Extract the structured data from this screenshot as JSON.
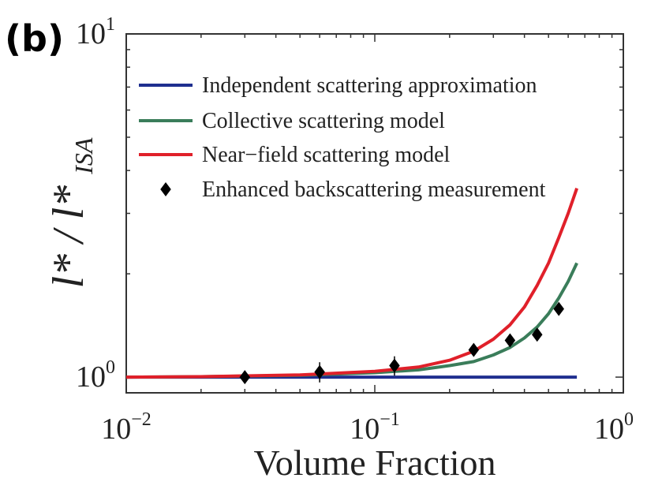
{
  "chart_data": {
    "type": "line",
    "panel_label": "(b)",
    "title": "",
    "xlabel": "Volume Fraction",
    "ylabel": {
      "main": "l* / l*",
      "subscript": "ISA"
    },
    "xscale": "log",
    "yscale": "log",
    "xlim": [
      0.01,
      1
    ],
    "ylim": [
      0.9,
      10
    ],
    "x_ticks": [
      {
        "base": "10",
        "exp": "−2"
      },
      {
        "base": "10",
        "exp": "−1"
      },
      {
        "base": "10",
        "exp": "0"
      }
    ],
    "y_ticks": [
      {
        "base": "10",
        "exp": "0"
      },
      {
        "base": "10",
        "exp": "1"
      }
    ],
    "legend_position": "top",
    "series": [
      {
        "name": "Independent scattering approximation",
        "kind": "line",
        "color": "#1f2f8f",
        "x": [
          0.01,
          0.02,
          0.05,
          0.1,
          0.2,
          0.3,
          0.4,
          0.5,
          0.65
        ],
        "y": [
          1.0,
          1.0,
          1.0,
          1.0,
          1.0,
          1.0,
          1.0,
          1.0,
          1.0
        ]
      },
      {
        "name": "Collective scattering model",
        "kind": "line",
        "color": "#3a7d5a",
        "x": [
          0.01,
          0.02,
          0.05,
          0.1,
          0.15,
          0.2,
          0.25,
          0.3,
          0.35,
          0.4,
          0.45,
          0.5,
          0.55,
          0.6,
          0.65
        ],
        "y": [
          1.0,
          1.003,
          1.012,
          1.03,
          1.05,
          1.08,
          1.11,
          1.16,
          1.22,
          1.3,
          1.4,
          1.53,
          1.7,
          1.9,
          2.15
        ]
      },
      {
        "name": "Near−field scattering model",
        "kind": "line",
        "color": "#e0202a",
        "x": [
          0.01,
          0.02,
          0.05,
          0.1,
          0.15,
          0.2,
          0.25,
          0.3,
          0.35,
          0.4,
          0.45,
          0.5,
          0.55,
          0.6,
          0.65
        ],
        "y": [
          1.0,
          1.003,
          1.015,
          1.04,
          1.07,
          1.12,
          1.19,
          1.29,
          1.42,
          1.6,
          1.85,
          2.15,
          2.55,
          3.0,
          3.55
        ]
      },
      {
        "name": "Enhanced backscattering measurement",
        "kind": "scatter",
        "marker": "diamond",
        "color": "#000000",
        "points": [
          {
            "x": 0.03,
            "y": 1.0,
            "err": 0.0
          },
          {
            "x": 0.06,
            "y": 1.035,
            "err": 0.07
          },
          {
            "x": 0.12,
            "y": 1.08,
            "err": 0.07
          },
          {
            "x": 0.25,
            "y": 1.2,
            "err": 0.045
          },
          {
            "x": 0.35,
            "y": 1.28,
            "err": 0.045
          },
          {
            "x": 0.45,
            "y": 1.33,
            "err": 0.02
          },
          {
            "x": 0.55,
            "y": 1.58,
            "err": 0.02
          }
        ]
      }
    ]
  }
}
